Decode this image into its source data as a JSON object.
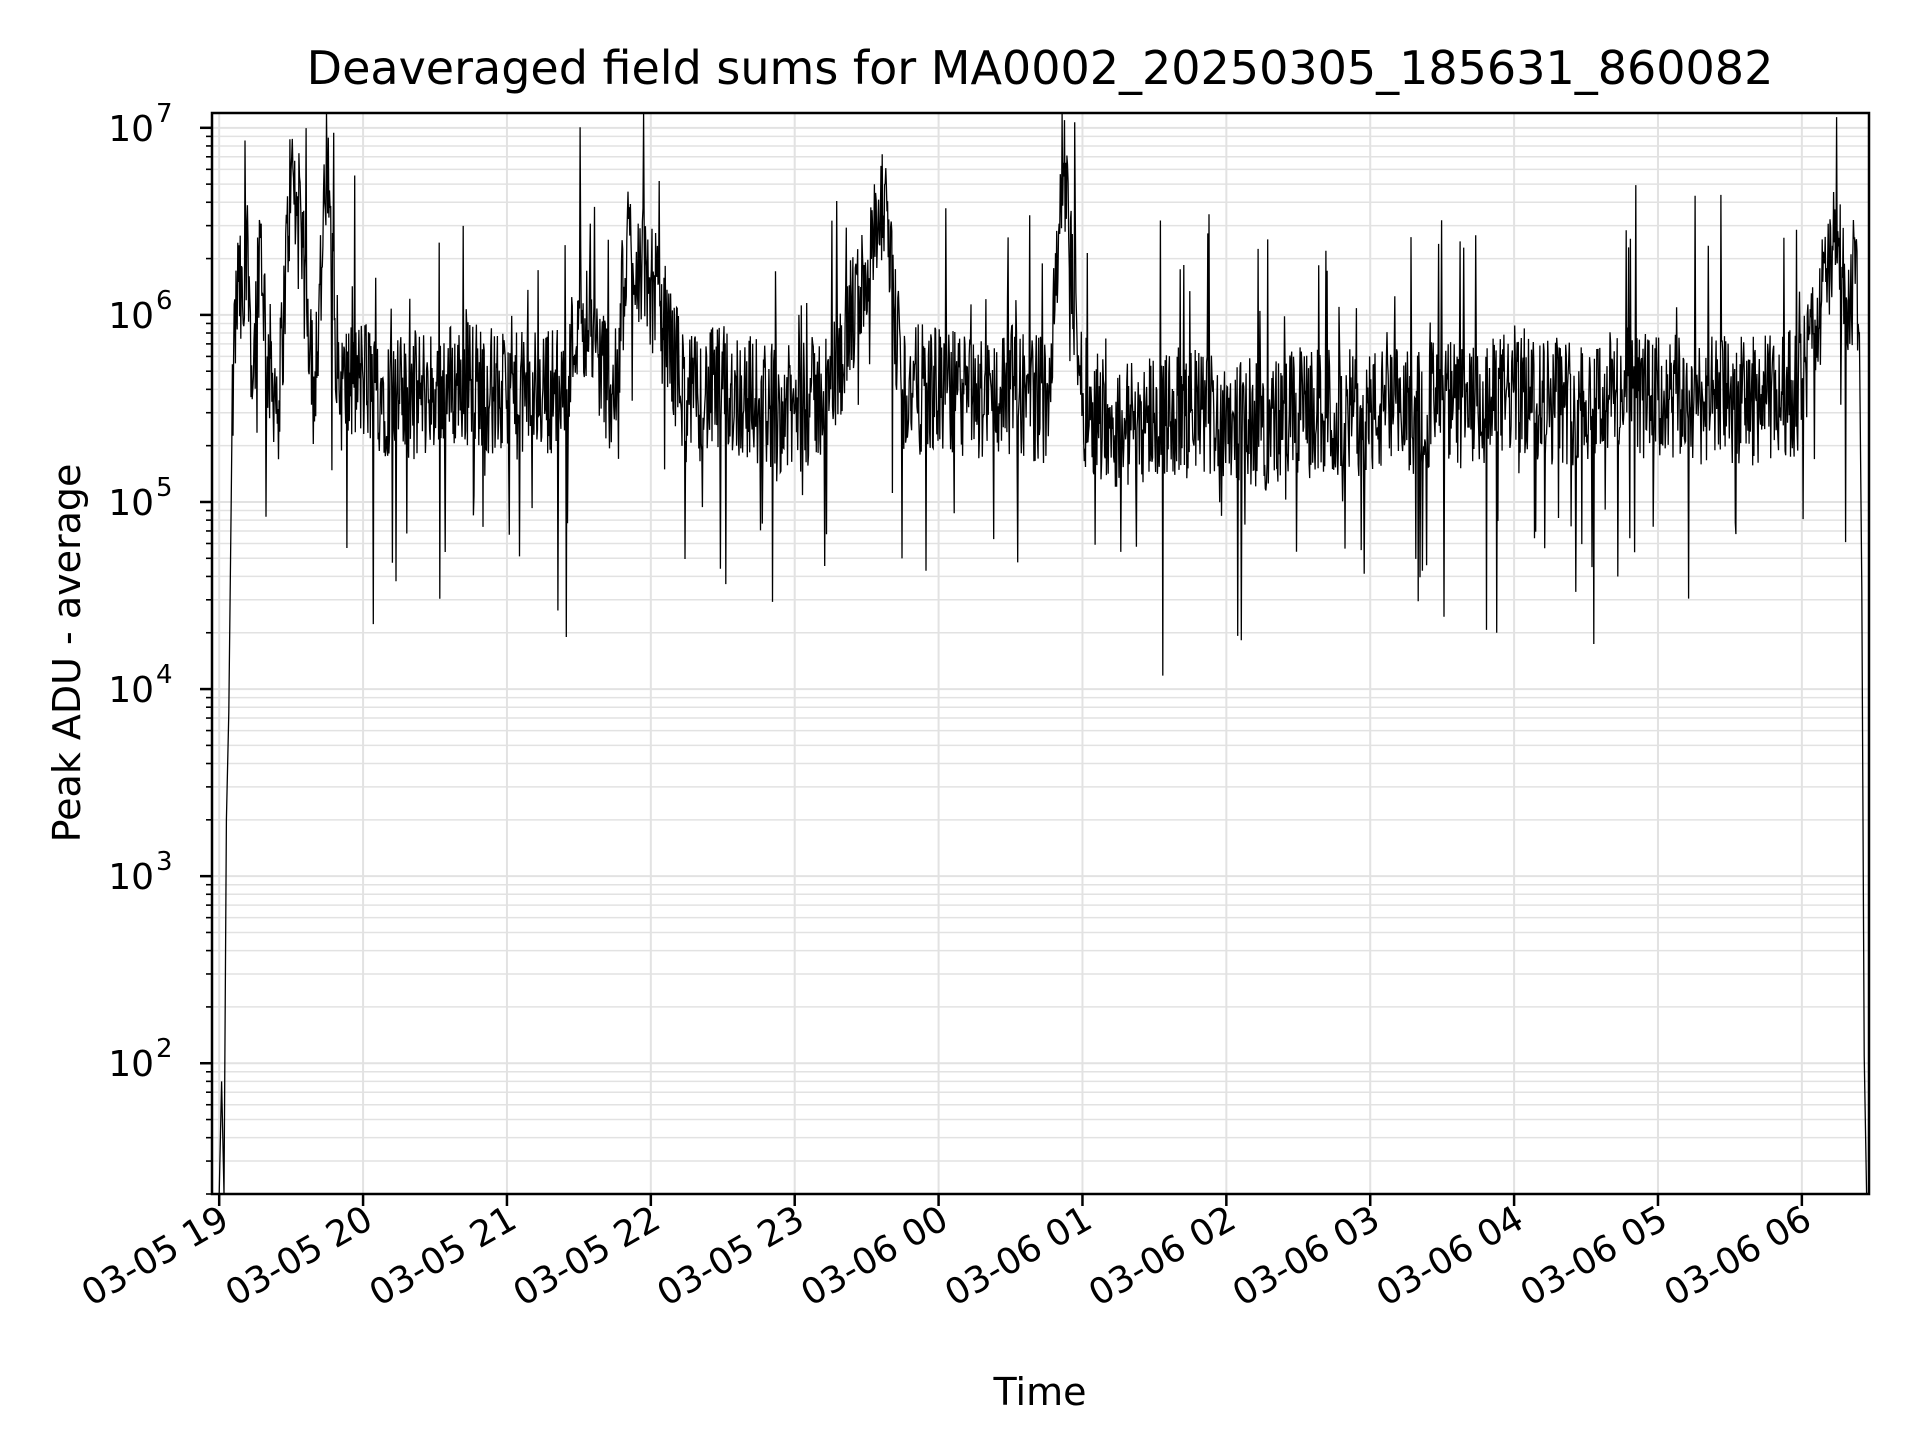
{
  "chart_data": {
    "type": "line",
    "title": "Deaveraged field sums for MA0002_20250305_185631_860082",
    "xlabel": "Time",
    "ylabel": "Peak ADU - average",
    "yscale": "log",
    "grid": true,
    "ylim": [
      20,
      12000000
    ],
    "xlim": [
      "2025-03-05 18:57",
      "2025-03-06 06:28"
    ],
    "x_ticks": [
      {
        "t": "2025-03-05 19:00",
        "label": "03-05 19"
      },
      {
        "t": "2025-03-05 20:00",
        "label": "03-05 20"
      },
      {
        "t": "2025-03-05 21:00",
        "label": "03-05 21"
      },
      {
        "t": "2025-03-05 22:00",
        "label": "03-05 22"
      },
      {
        "t": "2025-03-05 23:00",
        "label": "03-05 23"
      },
      {
        "t": "2025-03-06 00:00",
        "label": "03-06 00"
      },
      {
        "t": "2025-03-06 01:00",
        "label": "03-06 01"
      },
      {
        "t": "2025-03-06 02:00",
        "label": "03-06 02"
      },
      {
        "t": "2025-03-06 03:00",
        "label": "03-06 03"
      },
      {
        "t": "2025-03-06 04:00",
        "label": "03-06 04"
      },
      {
        "t": "2025-03-06 05:00",
        "label": "03-06 05"
      },
      {
        "t": "2025-03-06 06:00",
        "label": "03-06 06"
      }
    ],
    "y_ticks": [
      {
        "v": 100,
        "base": "10",
        "exp": "2"
      },
      {
        "v": 1000,
        "base": "10",
        "exp": "3"
      },
      {
        "v": 10000,
        "base": "10",
        "exp": "4"
      },
      {
        "v": 100000,
        "base": "10",
        "exp": "5"
      },
      {
        "v": 1000000,
        "base": "10",
        "exp": "6"
      },
      {
        "v": 10000000,
        "base": "10",
        "exp": "7"
      }
    ],
    "series": [
      {
        "color": "#000000",
        "x": [
          "2025-03-05 19:00",
          "2025-03-05 19:01",
          "2025-03-05 19:02",
          "2025-03-05 19:03",
          "2025-03-05 19:04",
          "2025-03-05 19:05",
          "2025-03-05 19:06",
          "2025-03-05 19:08",
          "2025-03-05 19:10",
          "2025-03-05 19:12",
          "2025-03-05 19:14",
          "2025-03-05 19:17",
          "2025-03-05 19:20",
          "2025-03-05 19:25",
          "2025-03-05 19:30",
          "2025-03-05 19:40",
          "2025-03-05 19:45",
          "2025-03-05 19:50",
          "2025-03-05 20:00",
          "2025-03-05 20:15",
          "2025-03-05 20:30",
          "2025-03-05 20:45",
          "2025-03-05 21:00",
          "2025-03-05 21:15",
          "2025-03-05 21:25",
          "2025-03-05 21:30",
          "2025-03-05 21:45",
          "2025-03-05 21:50",
          "2025-03-05 22:00",
          "2025-03-05 22:15",
          "2025-03-05 22:30",
          "2025-03-05 22:45",
          "2025-03-05 23:00",
          "2025-03-05 23:15",
          "2025-03-05 23:37",
          "2025-03-05 23:45",
          "2025-03-06 00:00",
          "2025-03-06 00:15",
          "2025-03-06 00:30",
          "2025-03-06 00:45",
          "2025-03-06 00:52",
          "2025-03-06 01:00",
          "2025-03-06 01:15",
          "2025-03-06 01:30",
          "2025-03-06 01:45",
          "2025-03-06 02:00",
          "2025-03-06 02:15",
          "2025-03-06 02:30",
          "2025-03-06 02:45",
          "2025-03-06 03:00",
          "2025-03-06 03:15",
          "2025-03-06 03:30",
          "2025-03-06 03:45",
          "2025-03-06 04:00",
          "2025-03-06 04:15",
          "2025-03-06 04:30",
          "2025-03-06 04:45",
          "2025-03-06 05:00",
          "2025-03-06 05:15",
          "2025-03-06 05:30",
          "2025-03-06 05:45",
          "2025-03-06 06:00",
          "2025-03-06 06:05",
          "2025-03-06 06:10",
          "2025-03-06 06:15",
          "2025-03-06 06:20",
          "2025-03-06 06:22",
          "2025-03-06 06:24",
          "2025-03-06 06:25",
          "2025-03-06 06:26",
          "2025-03-06 06:27"
        ],
        "y": [
          20,
          80,
          20,
          2000,
          7500,
          100000,
          600000,
          1500000,
          900000,
          2500000,
          400000,
          3000000,
          600000,
          350000,
          6000000,
          500000,
          5500000,
          400000,
          450000,
          350000,
          400000,
          450000,
          350000,
          400000,
          400000,
          1200000,
          350000,
          2500000,
          1500000,
          350000,
          400000,
          350000,
          300000,
          400000,
          3400000,
          400000,
          400000,
          350000,
          400000,
          350000,
          6500000,
          350000,
          250000,
          300000,
          300000,
          300000,
          250000,
          300000,
          300000,
          300000,
          300000,
          350000,
          300000,
          400000,
          350000,
          350000,
          400000,
          350000,
          350000,
          350000,
          350000,
          400000,
          800000,
          1500000,
          2800000,
          700000,
          2600000,
          800000,
          35000,
          110,
          20
        ]
      }
    ]
  }
}
